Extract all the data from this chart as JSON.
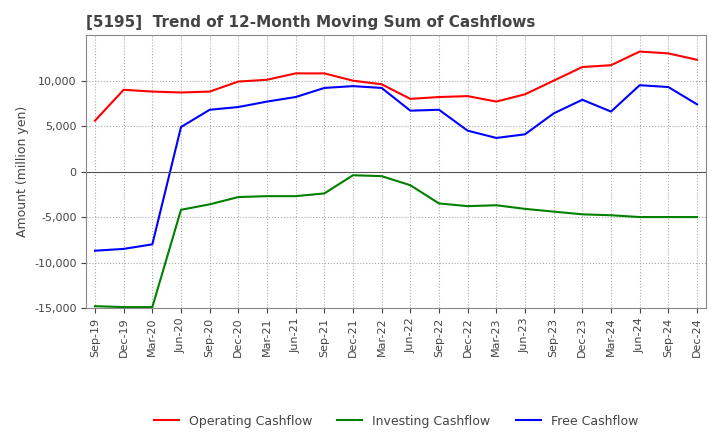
{
  "title": "[5195]  Trend of 12-Month Moving Sum of Cashflows",
  "ylabel": "Amount (million yen)",
  "ylim": [
    -15000,
    15000
  ],
  "yticks": [
    -15000,
    -10000,
    -5000,
    0,
    5000,
    10000
  ],
  "x_labels": [
    "Sep-19",
    "Dec-19",
    "Mar-20",
    "Jun-20",
    "Sep-20",
    "Dec-20",
    "Mar-21",
    "Jun-21",
    "Sep-21",
    "Dec-21",
    "Mar-22",
    "Jun-22",
    "Sep-22",
    "Dec-22",
    "Mar-23",
    "Jun-23",
    "Sep-23",
    "Dec-23",
    "Mar-24",
    "Jun-24",
    "Sep-24",
    "Dec-24"
  ],
  "operating": [
    5600,
    9000,
    8800,
    8700,
    8800,
    9900,
    10100,
    10800,
    10800,
    10000,
    9600,
    8000,
    8200,
    8300,
    7700,
    8500,
    10000,
    11500,
    11700,
    13200,
    13000,
    12300
  ],
  "investing": [
    -14800,
    -14900,
    -14900,
    -4200,
    -3600,
    -2800,
    -2700,
    -2700,
    -2400,
    -400,
    -500,
    -1500,
    -3500,
    -3800,
    -3700,
    -4100,
    -4400,
    -4700,
    -4800,
    -5000,
    -5000,
    -5000
  ],
  "free": [
    -8700,
    -8500,
    -8000,
    4900,
    6800,
    7100,
    7700,
    8200,
    9200,
    9400,
    9200,
    6700,
    6800,
    4500,
    3700,
    4100,
    6400,
    7900,
    6600,
    9500,
    9300,
    7400
  ],
  "operating_color": "#ff0000",
  "investing_color": "#008000",
  "free_color": "#0000ff",
  "background_color": "#ffffff",
  "grid_color": "#aaaaaa",
  "text_color": "#444444",
  "line_width": 1.5,
  "title_fontsize": 11,
  "ylabel_fontsize": 9,
  "legend_fontsize": 9,
  "tick_fontsize": 8
}
